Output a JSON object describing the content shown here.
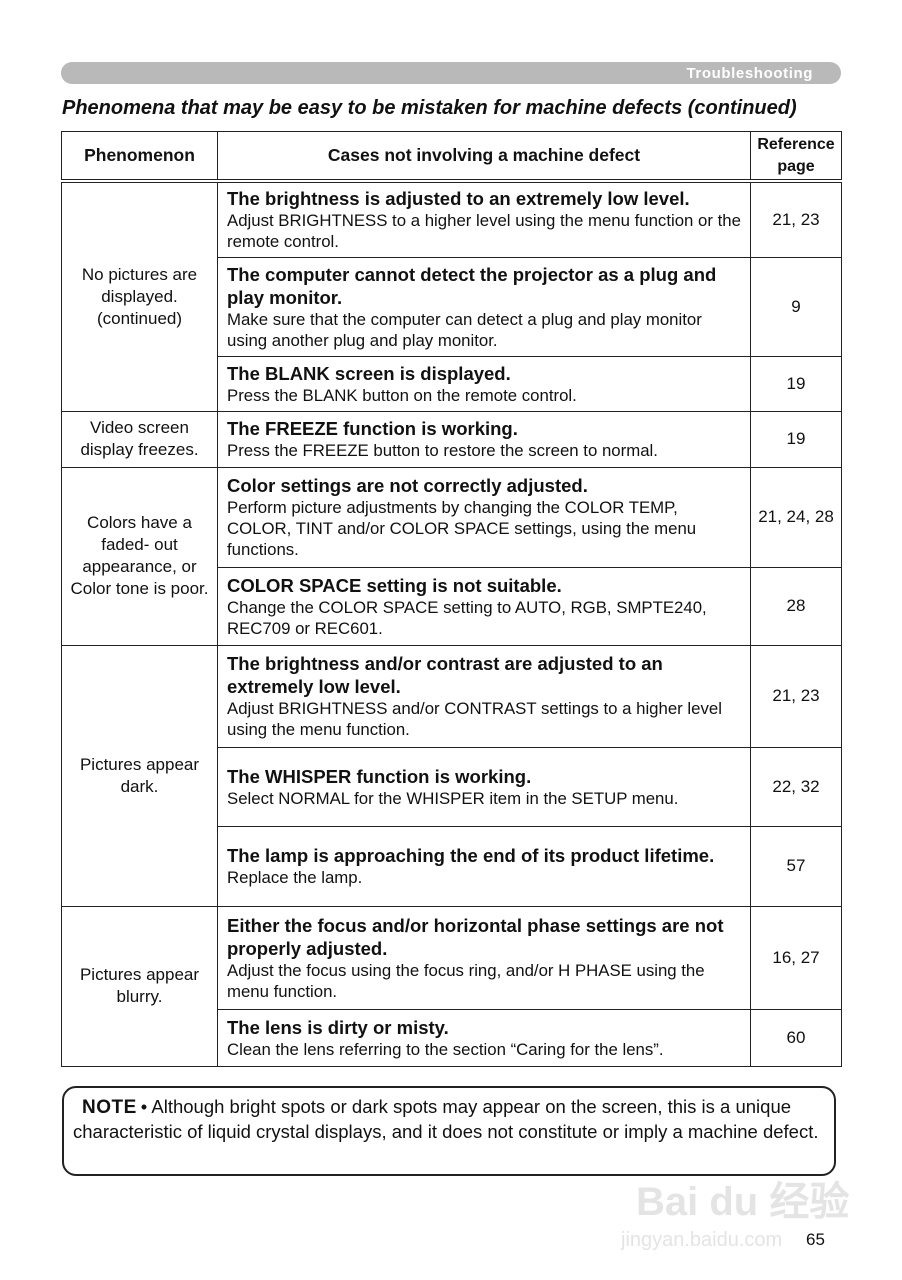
{
  "header": {
    "section": "Troubleshooting",
    "title": "Phenomena that may be easy to be mistaken for machine defects (continued)"
  },
  "table": {
    "columns": [
      "Phenomenon",
      "Cases not involving a machine defect",
      "Reference page"
    ],
    "groups": [
      {
        "phenomenon": "No pictures are displayed. (continued)",
        "cases": [
          {
            "title": "The brightness is adjusted to an extremely low level.",
            "body": "Adjust BRIGHTNESS to a higher level using the menu function or the remote control.",
            "ref": "21, 23"
          },
          {
            "title": "The computer cannot detect the projector as a plug and play monitor.",
            "body": "Make sure that the computer can detect a plug and play monitor using another plug and play monitor.",
            "ref": "9"
          },
          {
            "title": "The BLANK screen is displayed.",
            "body": "Press the BLANK button on the remote control.",
            "ref": "19"
          }
        ]
      },
      {
        "phenomenon": "Video screen display freezes.",
        "cases": [
          {
            "title": "The FREEZE function is working.",
            "body": "Press the FREEZE button to restore the screen to normal.",
            "ref": "19"
          }
        ]
      },
      {
        "phenomenon": "Colors have a faded- out appearance, or Color tone is poor.",
        "cases": [
          {
            "title": "Color settings are not correctly adjusted.",
            "body": "Perform picture adjustments by changing the COLOR TEMP, COLOR, TINT and/or COLOR SPACE settings, using the menu functions.",
            "ref": "21, 24, 28"
          },
          {
            "title": "COLOR SPACE setting is not suitable.",
            "body": "Change the COLOR SPACE setting to AUTO, RGB, SMPTE240, REC709 or REC601.",
            "ref": "28"
          }
        ]
      },
      {
        "phenomenon": "Pictures appear dark.",
        "cases": [
          {
            "title": "The brightness and/or contrast are adjusted to an extremely low level.",
            "body": "Adjust BRIGHTNESS and/or CONTRAST settings to a higher level using the menu function.",
            "ref": "21, 23"
          },
          {
            "title": "The WHISPER function is working.",
            "body": "Select NORMAL for the WHISPER item in the SETUP menu.",
            "ref": "22, 32"
          },
          {
            "title": "The lamp is approaching the end of its product lifetime.",
            "body": "Replace the lamp.",
            "ref": "57"
          }
        ]
      },
      {
        "phenomenon": "Pictures appear blurry.",
        "cases": [
          {
            "title": "Either the focus and/or horizontal phase settings are not properly adjusted.",
            "body": "Adjust the focus using the focus ring, and/or H PHASE using the menu function.",
            "ref": "16, 27"
          },
          {
            "title": "The lens is dirty or misty.",
            "body": "Clean the lens referring to the section “Caring for the lens”.",
            "ref": "60"
          }
        ]
      }
    ]
  },
  "note": {
    "label": "NOTE",
    "text": "• Although bright spots or dark spots may appear on the screen, this is a unique characteristic of liquid crystal displays, and it does not constitute or imply a machine defect."
  },
  "page_number": "65",
  "watermark": {
    "logo": "Baidu 经验",
    "url": "jingyan.baidu.com"
  }
}
